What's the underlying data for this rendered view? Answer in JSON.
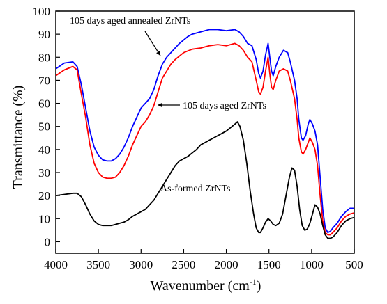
{
  "chart_data": {
    "type": "line",
    "xlabel": "Wavenumber (cm",
    "xlabel_sup": "-1",
    "xlabel_end": ")",
    "ylabel": "Transmittance (%)",
    "xlim": [
      4000,
      500
    ],
    "ylim": [
      -5,
      100
    ],
    "x_reversed": true,
    "xticks": [
      4000,
      3500,
      3000,
      2500,
      2000,
      1500,
      1000,
      500
    ],
    "yticks": [
      0,
      10,
      20,
      30,
      40,
      50,
      60,
      70,
      80,
      90,
      100
    ],
    "grid": false,
    "series": [
      {
        "name": "105 days aged annealed ZrNTs",
        "color": "#0000ff",
        "points": [
          [
            4000,
            75.0
          ],
          [
            3900,
            77.5
          ],
          [
            3800,
            78.0
          ],
          [
            3750,
            76.0
          ],
          [
            3700,
            68.0
          ],
          [
            3650,
            58.0
          ],
          [
            3600,
            48.0
          ],
          [
            3550,
            41.0
          ],
          [
            3500,
            37.5
          ],
          [
            3450,
            35.5
          ],
          [
            3400,
            35.0
          ],
          [
            3350,
            35.0
          ],
          [
            3300,
            36.0
          ],
          [
            3250,
            38.0
          ],
          [
            3200,
            41.0
          ],
          [
            3150,
            45.0
          ],
          [
            3100,
            50.0
          ],
          [
            3050,
            54.0
          ],
          [
            3000,
            58.0
          ],
          [
            2950,
            60.0
          ],
          [
            2900,
            62.0
          ],
          [
            2850,
            66.0
          ],
          [
            2800,
            72.0
          ],
          [
            2750,
            77.0
          ],
          [
            2700,
            80.0
          ],
          [
            2650,
            82.0
          ],
          [
            2600,
            84.0
          ],
          [
            2550,
            86.0
          ],
          [
            2500,
            87.5
          ],
          [
            2450,
            89.0
          ],
          [
            2400,
            90.0
          ],
          [
            2300,
            91.0
          ],
          [
            2200,
            92.0
          ],
          [
            2100,
            92.0
          ],
          [
            2000,
            91.5
          ],
          [
            1900,
            92.0
          ],
          [
            1850,
            91.0
          ],
          [
            1800,
            89.0
          ],
          [
            1750,
            86.0
          ],
          [
            1700,
            85.0
          ],
          [
            1650,
            79.0
          ],
          [
            1620,
            73.0
          ],
          [
            1600,
            71.0
          ],
          [
            1570,
            74.0
          ],
          [
            1540,
            81.0
          ],
          [
            1510,
            86.0
          ],
          [
            1490,
            80.0
          ],
          [
            1470,
            74.0
          ],
          [
            1450,
            72.0
          ],
          [
            1420,
            76.0
          ],
          [
            1380,
            80.0
          ],
          [
            1330,
            83.0
          ],
          [
            1280,
            82.0
          ],
          [
            1250,
            78.0
          ],
          [
            1200,
            70.0
          ],
          [
            1170,
            62.0
          ],
          [
            1150,
            53.0
          ],
          [
            1120,
            45.0
          ],
          [
            1100,
            44.0
          ],
          [
            1070,
            46.0
          ],
          [
            1040,
            51.0
          ],
          [
            1020,
            53.0
          ],
          [
            990,
            51.0
          ],
          [
            960,
            48.0
          ],
          [
            930,
            42.0
          ],
          [
            900,
            28.0
          ],
          [
            870,
            14.0
          ],
          [
            840,
            6.0
          ],
          [
            810,
            4.0
          ],
          [
            780,
            4.5
          ],
          [
            750,
            6.0
          ],
          [
            700,
            8.0
          ],
          [
            650,
            11.0
          ],
          [
            600,
            13.0
          ],
          [
            550,
            14.5
          ],
          [
            500,
            14.5
          ]
        ]
      },
      {
        "name": "105 days aged ZrNTs",
        "color": "#ff0000",
        "points": [
          [
            4000,
            72.0
          ],
          [
            3900,
            74.5
          ],
          [
            3800,
            76.0
          ],
          [
            3750,
            74.5
          ],
          [
            3700,
            64.0
          ],
          [
            3650,
            54.0
          ],
          [
            3600,
            42.0
          ],
          [
            3550,
            34.0
          ],
          [
            3500,
            30.0
          ],
          [
            3450,
            28.0
          ],
          [
            3400,
            27.5
          ],
          [
            3350,
            27.5
          ],
          [
            3300,
            28.0
          ],
          [
            3250,
            30.0
          ],
          [
            3200,
            33.0
          ],
          [
            3150,
            37.0
          ],
          [
            3100,
            42.0
          ],
          [
            3050,
            46.0
          ],
          [
            3000,
            50.0
          ],
          [
            2950,
            52.0
          ],
          [
            2900,
            55.0
          ],
          [
            2850,
            59.0
          ],
          [
            2800,
            65.0
          ],
          [
            2750,
            71.0
          ],
          [
            2700,
            74.0
          ],
          [
            2650,
            77.0
          ],
          [
            2600,
            79.0
          ],
          [
            2550,
            80.5
          ],
          [
            2500,
            82.0
          ],
          [
            2400,
            83.5
          ],
          [
            2300,
            84.0
          ],
          [
            2200,
            85.0
          ],
          [
            2100,
            85.5
          ],
          [
            2000,
            85.0
          ],
          [
            1900,
            86.0
          ],
          [
            1850,
            85.0
          ],
          [
            1800,
            83.0
          ],
          [
            1750,
            80.0
          ],
          [
            1700,
            78.0
          ],
          [
            1650,
            70.0
          ],
          [
            1620,
            65.0
          ],
          [
            1600,
            64.0
          ],
          [
            1570,
            67.0
          ],
          [
            1540,
            74.0
          ],
          [
            1510,
            80.0
          ],
          [
            1490,
            73.0
          ],
          [
            1470,
            67.0
          ],
          [
            1450,
            66.0
          ],
          [
            1420,
            70.0
          ],
          [
            1380,
            74.0
          ],
          [
            1330,
            75.0
          ],
          [
            1280,
            74.0
          ],
          [
            1250,
            70.0
          ],
          [
            1200,
            62.0
          ],
          [
            1170,
            53.0
          ],
          [
            1150,
            45.0
          ],
          [
            1120,
            39.0
          ],
          [
            1100,
            38.0
          ],
          [
            1070,
            40.0
          ],
          [
            1040,
            43.0
          ],
          [
            1020,
            45.0
          ],
          [
            990,
            43.0
          ],
          [
            960,
            40.0
          ],
          [
            930,
            33.0
          ],
          [
            900,
            20.0
          ],
          [
            870,
            9.0
          ],
          [
            840,
            4.0
          ],
          [
            810,
            3.0
          ],
          [
            780,
            3.0
          ],
          [
            750,
            4.0
          ],
          [
            700,
            6.0
          ],
          [
            650,
            9.0
          ],
          [
            600,
            11.0
          ],
          [
            550,
            12.0
          ],
          [
            500,
            12.5
          ]
        ]
      },
      {
        "name": "As-formed ZrNTs",
        "color": "#000000",
        "points": [
          [
            4000,
            20.0
          ],
          [
            3900,
            20.5
          ],
          [
            3800,
            21.0
          ],
          [
            3750,
            21.0
          ],
          [
            3700,
            19.5
          ],
          [
            3650,
            16.0
          ],
          [
            3600,
            12.0
          ],
          [
            3550,
            9.0
          ],
          [
            3500,
            7.5
          ],
          [
            3450,
            7.0
          ],
          [
            3400,
            7.0
          ],
          [
            3350,
            7.0
          ],
          [
            3300,
            7.5
          ],
          [
            3250,
            8.0
          ],
          [
            3200,
            8.5
          ],
          [
            3150,
            9.5
          ],
          [
            3100,
            11.0
          ],
          [
            3050,
            12.0
          ],
          [
            3000,
            13.0
          ],
          [
            2950,
            14.0
          ],
          [
            2900,
            16.0
          ],
          [
            2850,
            18.0
          ],
          [
            2800,
            21.0
          ],
          [
            2750,
            24.0
          ],
          [
            2700,
            27.0
          ],
          [
            2650,
            30.0
          ],
          [
            2600,
            33.0
          ],
          [
            2550,
            35.0
          ],
          [
            2500,
            36.0
          ],
          [
            2450,
            37.0
          ],
          [
            2400,
            38.5
          ],
          [
            2350,
            40.0
          ],
          [
            2300,
            42.0
          ],
          [
            2250,
            43.0
          ],
          [
            2200,
            44.0
          ],
          [
            2150,
            45.0
          ],
          [
            2100,
            46.0
          ],
          [
            2050,
            47.0
          ],
          [
            2000,
            48.0
          ],
          [
            1950,
            49.5
          ],
          [
            1900,
            51.0
          ],
          [
            1870,
            52.0
          ],
          [
            1840,
            50.0
          ],
          [
            1800,
            44.0
          ],
          [
            1760,
            34.0
          ],
          [
            1720,
            22.0
          ],
          [
            1680,
            12.0
          ],
          [
            1650,
            6.0
          ],
          [
            1620,
            4.0
          ],
          [
            1600,
            4.0
          ],
          [
            1570,
            6.0
          ],
          [
            1540,
            8.5
          ],
          [
            1510,
            10.0
          ],
          [
            1480,
            9.0
          ],
          [
            1450,
            7.5
          ],
          [
            1420,
            7.0
          ],
          [
            1380,
            8.0
          ],
          [
            1340,
            12.0
          ],
          [
            1300,
            20.0
          ],
          [
            1260,
            28.0
          ],
          [
            1230,
            32.0
          ],
          [
            1200,
            31.0
          ],
          [
            1170,
            24.0
          ],
          [
            1140,
            14.0
          ],
          [
            1110,
            7.0
          ],
          [
            1080,
            5.0
          ],
          [
            1050,
            5.5
          ],
          [
            1020,
            8.0
          ],
          [
            990,
            12.0
          ],
          [
            960,
            16.0
          ],
          [
            930,
            15.0
          ],
          [
            900,
            12.0
          ],
          [
            870,
            7.0
          ],
          [
            840,
            3.0
          ],
          [
            810,
            1.5
          ],
          [
            780,
            1.5
          ],
          [
            750,
            2.0
          ],
          [
            700,
            4.0
          ],
          [
            650,
            7.0
          ],
          [
            600,
            9.0
          ],
          [
            550,
            10.0
          ],
          [
            500,
            10.5
          ]
        ]
      }
    ],
    "annotations": [
      {
        "text": "105 days aged annealed ZrNTs",
        "series": 0
      },
      {
        "text": "105 days aged ZrNTs",
        "series": 1
      },
      {
        "text": "As-formed ZrNTs",
        "series": 2
      }
    ]
  }
}
